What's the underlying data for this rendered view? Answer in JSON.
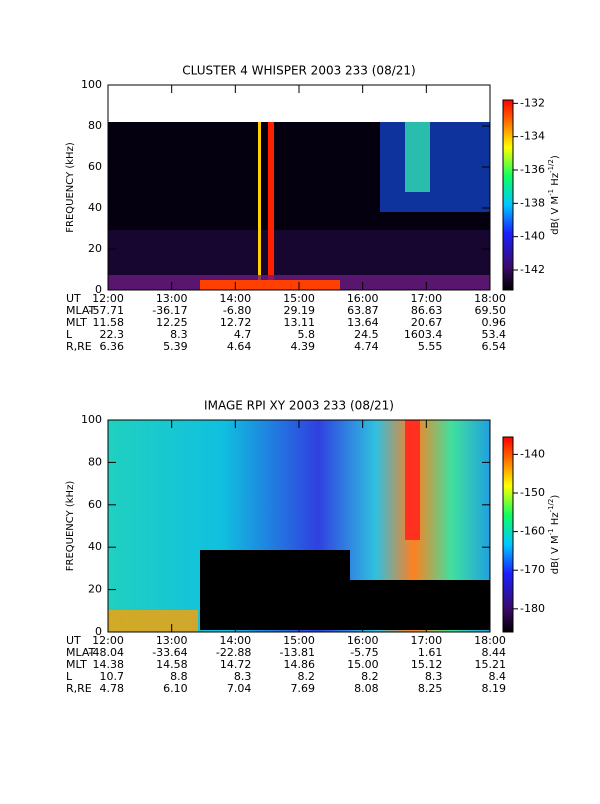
{
  "chart_data": [
    {
      "type": "spectrogram",
      "title": "CLUSTER 4 WHISPER 2003 233 (08/21)",
      "ylabel": "FREQUENCY (kHz)",
      "xlim": [
        12,
        18
      ],
      "xticks": [
        {
          "value": 12,
          "label": "12:00"
        },
        {
          "value": 13,
          "label": "13:00"
        },
        {
          "value": 14,
          "label": "14:00"
        },
        {
          "value": 15,
          "label": "15:00"
        },
        {
          "value": 16,
          "label": "16:00"
        },
        {
          "value": 17,
          "label": "17:00"
        },
        {
          "value": 18,
          "label": "18:00"
        }
      ],
      "ylim": [
        0,
        100
      ],
      "yticks": [
        0,
        20,
        40,
        60,
        80,
        100
      ],
      "clim": [
        -143.2,
        -131.8
      ],
      "cticks": [
        -132,
        -134,
        -136,
        -138,
        -140,
        -142
      ],
      "colorbar_label": [
        "dB( V M",
        "-1",
        " Hz",
        "-1/2",
        ")"
      ],
      "ephemeris": {
        "row_labels": [
          "UT",
          "MLAT",
          "MLT",
          "L",
          "R,RE"
        ],
        "rows": [
          [
            "-57.71",
            "-36.17",
            "-6.80",
            "29.19",
            "63.87",
            "86.63",
            "69.50"
          ],
          [
            "11.58",
            "12.25",
            "12.72",
            "13.11",
            "13.64",
            "20.67",
            "0.96"
          ],
          [
            "22.3",
            "8.3",
            "4.7",
            "5.8",
            "24.5",
            "1603.4",
            "53.4"
          ],
          [
            "6.36",
            "5.39",
            "4.64",
            "4.39",
            "4.74",
            "5.55",
            "6.54"
          ]
        ]
      }
    },
    {
      "type": "spectrogram",
      "title": "IMAGE RPI XY 2003 233 (08/21)",
      "ylabel": "FREQUENCY (kHz)",
      "xlim": [
        12,
        18
      ],
      "xticks": [
        {
          "value": 12,
          "label": "12:00"
        },
        {
          "value": 13,
          "label": "13:00"
        },
        {
          "value": 14,
          "label": "14:00"
        },
        {
          "value": 15,
          "label": "15:00"
        },
        {
          "value": 16,
          "label": "16:00"
        },
        {
          "value": 17,
          "label": "17:00"
        },
        {
          "value": 18,
          "label": "18:00"
        }
      ],
      "ylim": [
        0,
        100
      ],
      "yticks": [
        0,
        20,
        40,
        60,
        80,
        100
      ],
      "clim": [
        -186,
        -135.5
      ],
      "cticks": [
        -140,
        -150,
        -160,
        -170,
        -180
      ],
      "colorbar_label": [
        "dB( V M",
        "-1",
        " Hz",
        "-1/2",
        ")"
      ],
      "ephemeris": {
        "row_labels": [
          "UT",
          "MLAT",
          "MLT",
          "L",
          "R,RE"
        ],
        "rows": [
          [
            "-48.04",
            "-33.64",
            "-22.88",
            "-13.81",
            "-5.75",
            "1.61",
            "8.44"
          ],
          [
            "14.38",
            "14.58",
            "14.72",
            "14.86",
            "15.00",
            "15.12",
            "15.21"
          ],
          [
            "10.7",
            "8.8",
            "8.3",
            "8.2",
            "8.2",
            "8.3",
            "8.4"
          ],
          [
            "4.78",
            "6.10",
            "7.04",
            "7.69",
            "8.08",
            "8.25",
            "8.19"
          ]
        ]
      }
    }
  ]
}
